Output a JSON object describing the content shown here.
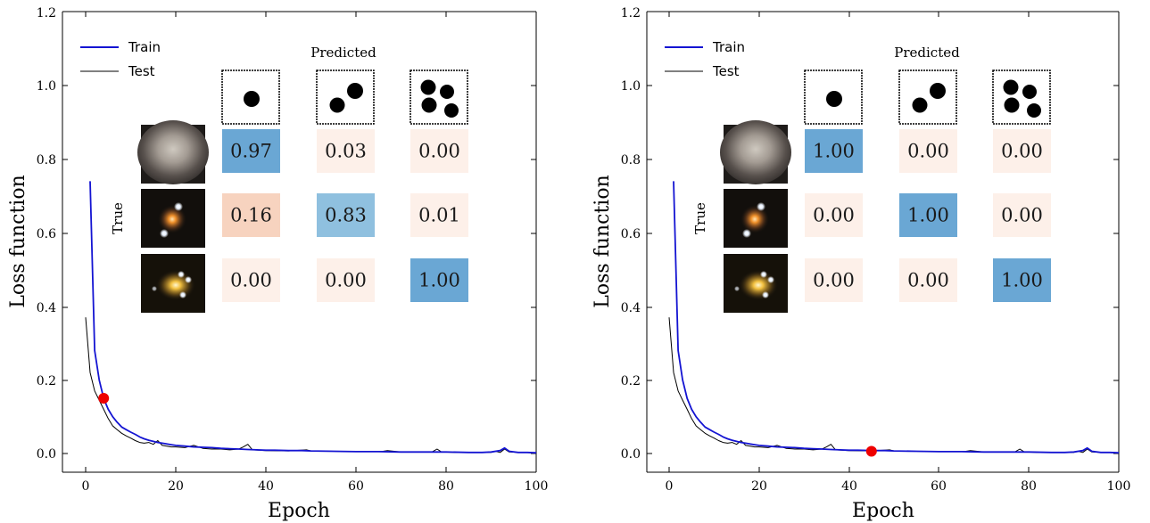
{
  "colors": {
    "train": "#1414d2",
    "test": "#000000",
    "marker": "#ee0000",
    "cell_high": "#6aa7d4",
    "cell_mid": "#8fc0df",
    "cell_medium_low": "#f7d3bf",
    "cell_low": "#fdf0e9"
  },
  "chart_data": [
    {
      "type": "line",
      "xlabel": "Epoch",
      "ylabel": "Loss function",
      "xlim": [
        -3,
        100
      ],
      "ylim": [
        -0.05,
        1.2
      ],
      "xticks": [
        "0",
        "20",
        "40",
        "60",
        "80",
        "100"
      ],
      "yticks": [
        "0.0",
        "0.2",
        "0.4",
        "0.6",
        "0.8",
        "1.0",
        "1.2"
      ],
      "legend": {
        "position": "top-left",
        "entries": [
          "Train",
          "Test"
        ]
      },
      "series": [
        {
          "name": "Train",
          "x": [
            1,
            2,
            3,
            4,
            5,
            6,
            7,
            8,
            9,
            10,
            11,
            12,
            13,
            14,
            15,
            16,
            17,
            18,
            19,
            20,
            22,
            24,
            26,
            28,
            30,
            32,
            34,
            36,
            38,
            40,
            42,
            45,
            48,
            50,
            55,
            60,
            65,
            70,
            75,
            80,
            85,
            88,
            90,
            92,
            93,
            94,
            96,
            98,
            100
          ],
          "y": [
            0.74,
            0.28,
            0.2,
            0.15,
            0.12,
            0.1,
            0.085,
            0.072,
            0.065,
            0.058,
            0.052,
            0.045,
            0.04,
            0.036,
            0.033,
            0.03,
            0.028,
            0.026,
            0.024,
            0.022,
            0.02,
            0.018,
            0.017,
            0.016,
            0.014,
            0.013,
            0.012,
            0.011,
            0.01,
            0.009,
            0.009,
            0.008,
            0.008,
            0.007,
            0.006,
            0.005,
            0.005,
            0.004,
            0.004,
            0.004,
            0.003,
            0.003,
            0.004,
            0.008,
            0.015,
            0.006,
            0.003,
            0.003,
            0.002
          ]
        },
        {
          "name": "Test",
          "x": [
            0,
            1,
            2,
            3,
            4,
            5,
            6,
            7,
            8,
            9,
            10,
            11,
            12,
            13,
            14,
            15,
            16,
            17,
            18,
            19,
            20,
            22,
            24,
            26,
            28,
            30,
            32,
            34,
            35,
            36,
            37,
            40,
            45,
            49,
            50,
            55,
            60,
            66,
            67,
            70,
            75,
            77,
            78,
            79,
            82,
            90,
            91,
            92,
            93,
            94,
            96,
            100
          ],
          "y": [
            0.37,
            0.22,
            0.17,
            0.145,
            0.12,
            0.095,
            0.075,
            0.065,
            0.055,
            0.048,
            0.042,
            0.035,
            0.03,
            0.028,
            0.03,
            0.025,
            0.035,
            0.022,
            0.02,
            0.018,
            0.018,
            0.016,
            0.022,
            0.014,
            0.012,
            0.012,
            0.01,
            0.012,
            0.018,
            0.025,
            0.01,
            0.008,
            0.007,
            0.01,
            0.007,
            0.006,
            0.005,
            0.006,
            0.008,
            0.004,
            0.004,
            0.005,
            0.012,
            0.004,
            0.003,
            0.003,
            0.006,
            0.003,
            0.012,
            0.004,
            0.003,
            0.002
          ]
        }
      ],
      "marker": {
        "x": 4,
        "y": 0.15
      },
      "confusion_matrix": {
        "col_title": "Predicted",
        "row_title": "True",
        "values": [
          [
            "0.97",
            "0.03",
            "0.00"
          ],
          [
            "0.16",
            "0.83",
            "0.01"
          ],
          [
            "0.00",
            "0.00",
            "1.00"
          ]
        ],
        "levels": [
          [
            0.97,
            0.03,
            0.0
          ],
          [
            0.16,
            0.83,
            0.01
          ],
          [
            0.0,
            0.0,
            1.0
          ]
        ]
      }
    },
    {
      "type": "line",
      "xlabel": "Epoch",
      "ylabel": "Loss function",
      "xlim": [
        -3,
        100
      ],
      "ylim": [
        -0.05,
        1.2
      ],
      "xticks": [
        "0",
        "20",
        "40",
        "60",
        "80",
        "100"
      ],
      "yticks": [
        "0.0",
        "0.2",
        "0.4",
        "0.6",
        "0.8",
        "1.0",
        "1.2"
      ],
      "legend": {
        "position": "top-left",
        "entries": [
          "Train",
          "Test"
        ]
      },
      "series": [
        {
          "name": "Train",
          "x": [
            1,
            2,
            3,
            4,
            5,
            6,
            7,
            8,
            9,
            10,
            11,
            12,
            13,
            14,
            15,
            16,
            17,
            18,
            19,
            20,
            22,
            24,
            26,
            28,
            30,
            32,
            34,
            36,
            38,
            40,
            42,
            45,
            48,
            50,
            55,
            60,
            65,
            70,
            75,
            80,
            85,
            88,
            90,
            92,
            93,
            94,
            96,
            98,
            100
          ],
          "y": [
            0.74,
            0.28,
            0.2,
            0.15,
            0.12,
            0.1,
            0.085,
            0.072,
            0.065,
            0.058,
            0.052,
            0.045,
            0.04,
            0.036,
            0.033,
            0.03,
            0.028,
            0.026,
            0.024,
            0.022,
            0.02,
            0.018,
            0.017,
            0.016,
            0.014,
            0.013,
            0.012,
            0.011,
            0.01,
            0.009,
            0.009,
            0.008,
            0.008,
            0.007,
            0.006,
            0.005,
            0.005,
            0.004,
            0.004,
            0.004,
            0.003,
            0.003,
            0.004,
            0.008,
            0.015,
            0.006,
            0.003,
            0.003,
            0.002
          ]
        },
        {
          "name": "Test",
          "x": [
            0,
            1,
            2,
            3,
            4,
            5,
            6,
            7,
            8,
            9,
            10,
            11,
            12,
            13,
            14,
            15,
            16,
            17,
            18,
            19,
            20,
            22,
            24,
            26,
            28,
            30,
            32,
            34,
            35,
            36,
            37,
            40,
            45,
            49,
            50,
            55,
            60,
            66,
            67,
            70,
            75,
            77,
            78,
            79,
            82,
            90,
            91,
            92,
            93,
            94,
            96,
            100
          ],
          "y": [
            0.37,
            0.22,
            0.17,
            0.145,
            0.12,
            0.095,
            0.075,
            0.065,
            0.055,
            0.048,
            0.042,
            0.035,
            0.03,
            0.028,
            0.03,
            0.025,
            0.035,
            0.022,
            0.02,
            0.018,
            0.018,
            0.016,
            0.022,
            0.014,
            0.012,
            0.012,
            0.01,
            0.012,
            0.018,
            0.025,
            0.01,
            0.008,
            0.007,
            0.01,
            0.007,
            0.006,
            0.005,
            0.006,
            0.008,
            0.004,
            0.004,
            0.005,
            0.012,
            0.004,
            0.003,
            0.003,
            0.006,
            0.003,
            0.012,
            0.004,
            0.003,
            0.002
          ]
        }
      ],
      "marker": {
        "x": 45,
        "y": 0.006
      },
      "confusion_matrix": {
        "col_title": "Predicted",
        "row_title": "True",
        "values": [
          [
            "1.00",
            "0.00",
            "0.00"
          ],
          [
            "0.00",
            "1.00",
            "0.00"
          ],
          [
            "0.00",
            "0.00",
            "1.00"
          ]
        ],
        "levels": [
          [
            1.0,
            0.0,
            0.0
          ],
          [
            0.0,
            1.0,
            0.0
          ],
          [
            0.0,
            0.0,
            1.0
          ]
        ]
      }
    }
  ]
}
